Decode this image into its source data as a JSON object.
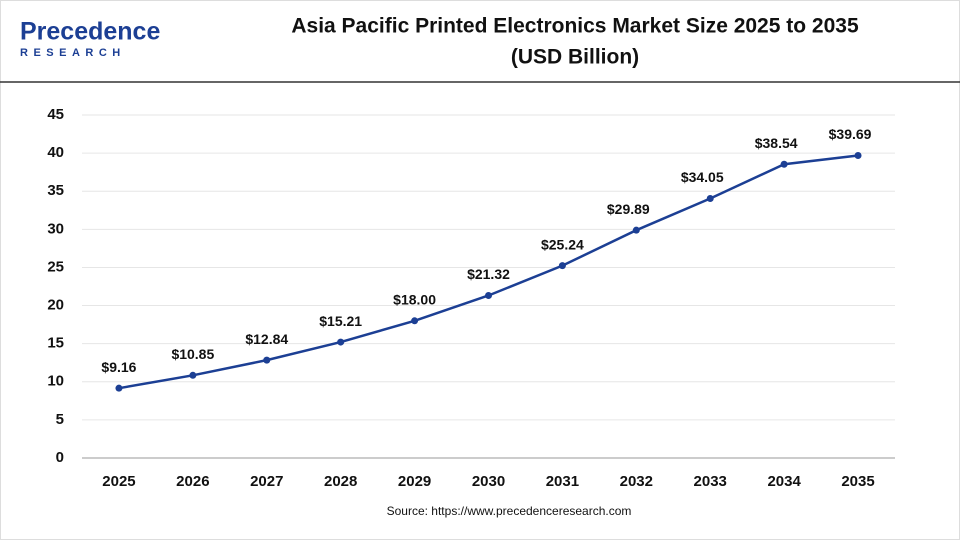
{
  "brand": {
    "name": "Precedence",
    "tagline": "RESEARCH"
  },
  "chart_data": {
    "type": "line",
    "title": "Asia Pacific Printed Electronics Market Size 2025 to 2035",
    "subtitle": "(USD Billion)",
    "source": "Source: https://www.precedenceresearch.com",
    "categories": [
      "2025",
      "2026",
      "2027",
      "2028",
      "2029",
      "2030",
      "2031",
      "2032",
      "2033",
      "2034",
      "2035"
    ],
    "series": [
      {
        "color": "#1c3f94",
        "values": [
          9.16,
          10.85,
          12.84,
          15.21,
          18.0,
          21.32,
          25.24,
          29.89,
          34.05,
          38.54,
          39.69
        ],
        "value_labels": [
          "$9.16",
          "$10.85",
          "$12.84",
          "$15.21",
          "$18.00",
          "$21.32",
          "$25.24",
          "$29.89",
          "$34.05",
          "$38.54",
          "$39.69"
        ]
      }
    ],
    "ylim": [
      0,
      45
    ],
    "yticks": [
      0,
      5,
      10,
      15,
      20,
      25,
      30,
      35,
      40,
      45
    ],
    "grid": true
  }
}
